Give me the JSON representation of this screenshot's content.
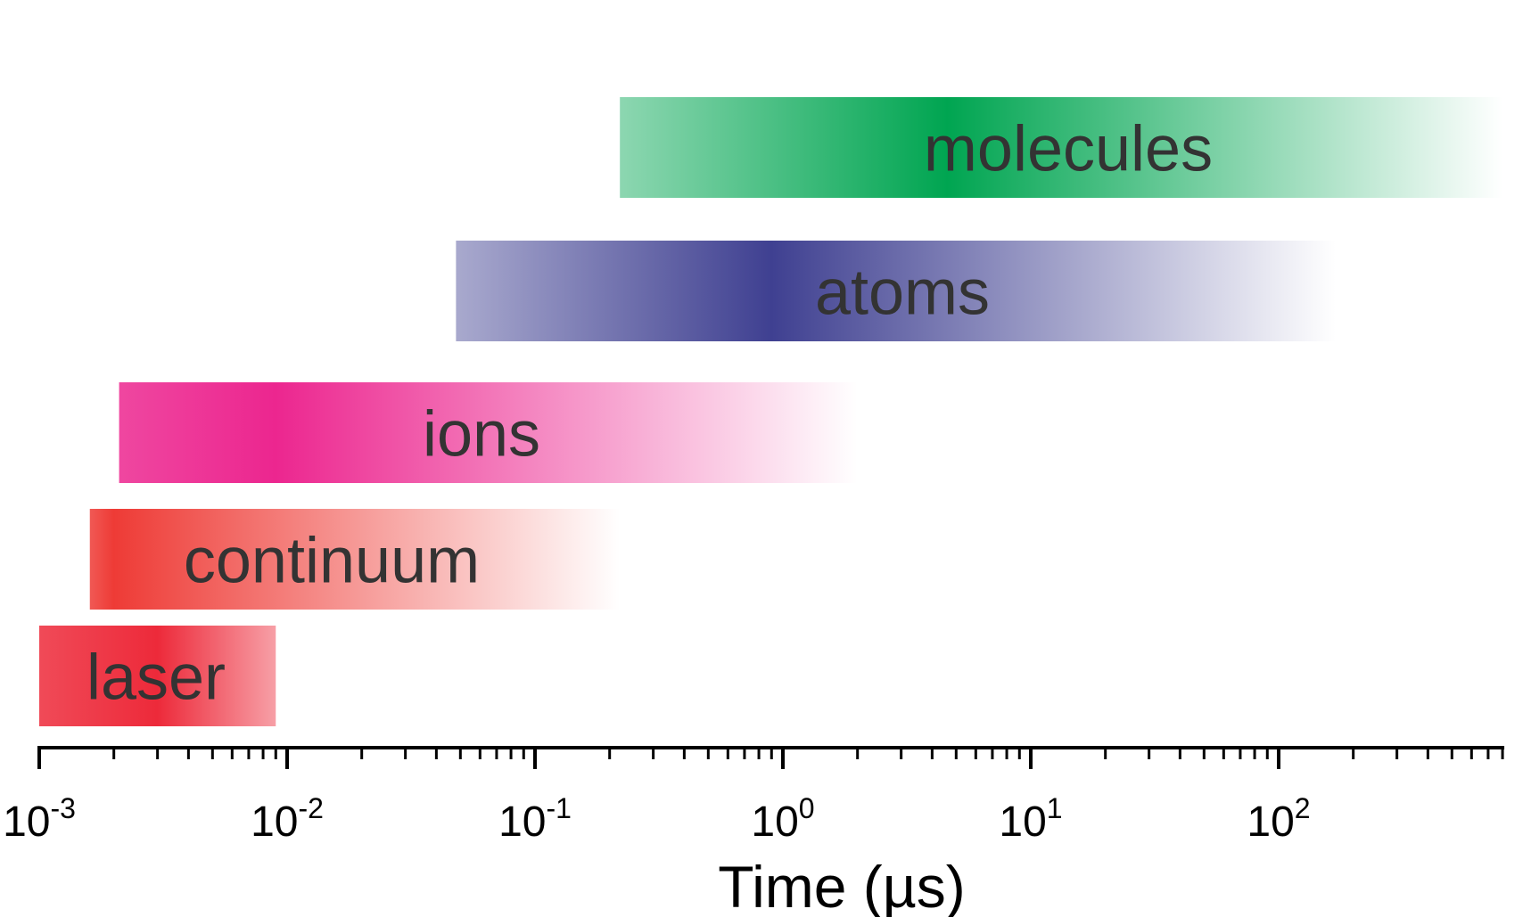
{
  "chart_data": {
    "type": "bar",
    "orientation": "horizontal",
    "x_scale": "log",
    "xlim": [
      0.001,
      800
    ],
    "xlabel": "Time (µs)",
    "x_ticks": [
      {
        "base": "10",
        "exp": "-3"
      },
      {
        "base": "10",
        "exp": "-2"
      },
      {
        "base": "10",
        "exp": "-1"
      },
      {
        "base": "10",
        "exp": "0"
      },
      {
        "base": "10",
        "exp": "1"
      },
      {
        "base": "10",
        "exp": "2"
      }
    ],
    "bars": [
      {
        "label": "laser",
        "start": 0.001,
        "end": 0.009,
        "peak": 0.003,
        "color": "#ed2a3a",
        "fade": "right"
      },
      {
        "label": "continuum",
        "start": 0.0016,
        "end": 0.22,
        "peak": 0.002,
        "color": "#ee3b36",
        "fade": "right"
      },
      {
        "label": "ions",
        "start": 0.0021,
        "end": 2.0,
        "peak": 0.009,
        "color": "#ec268f",
        "fade": "right"
      },
      {
        "label": "atoms",
        "start": 0.048,
        "end": 170,
        "peak": 0.9,
        "color": "#3f4091",
        "fade": "both"
      },
      {
        "label": "molecules",
        "start": 0.22,
        "end": 800,
        "peak": 4.6,
        "color": "#00a551",
        "fade": "both"
      }
    ]
  }
}
